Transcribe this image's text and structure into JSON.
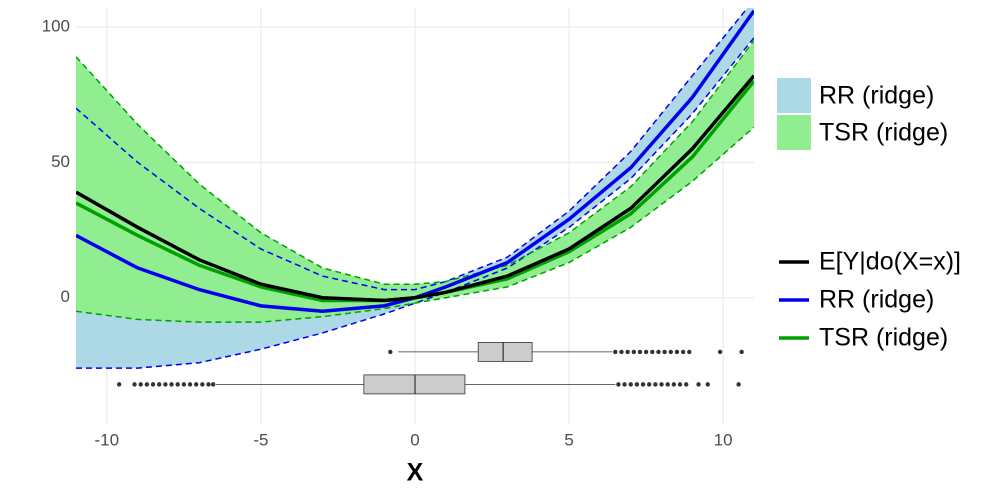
{
  "chart_data": {
    "type": "line",
    "x_label": "X",
    "x": [
      -11,
      -9,
      -7,
      -5,
      -3,
      -1,
      0,
      1,
      3,
      5,
      7,
      9,
      11
    ],
    "series": [
      {
        "name": "E[Y|do(X=x)]",
        "color": "#000000",
        "values": [
          39,
          26,
          14,
          5,
          0,
          -1,
          0,
          2,
          8,
          18,
          33,
          55,
          82
        ]
      },
      {
        "name": "RR (ridge)",
        "color": "#0000ee",
        "values": [
          23,
          11,
          3,
          -3,
          -5,
          -3,
          0,
          4,
          13,
          29,
          48,
          74,
          106
        ]
      },
      {
        "name": "TSR (ridge)",
        "color": "#00a000",
        "values": [
          35,
          23,
          12,
          4,
          -1,
          -1,
          0,
          2,
          7,
          17,
          31,
          52,
          80
        ]
      }
    ],
    "bands": [
      {
        "name": "RR (ridge)",
        "color": "#add8e6",
        "edge_color": "#0000ee",
        "lower": [
          -26,
          -26,
          -24,
          -19,
          -13,
          -6,
          -2,
          2,
          11,
          26,
          44,
          68,
          96
        ],
        "upper": [
          70,
          50,
          33,
          18,
          8,
          3,
          3,
          6,
          15,
          32,
          54,
          82,
          110
        ]
      },
      {
        "name": "TSR (ridge)",
        "color": "#90ee90",
        "edge_color": "#00a000",
        "lower": [
          -5,
          -8,
          -9,
          -9,
          -7,
          -4,
          -2,
          0,
          4,
          13,
          26,
          43,
          63
        ],
        "upper": [
          89,
          64,
          42,
          24,
          11,
          5,
          5,
          6,
          12,
          24,
          41,
          65,
          95
        ]
      }
    ],
    "boxplots": [
      {
        "position": -20,
        "q1": 2.05,
        "median": 2.86,
        "q3": 3.8,
        "whisker_low": -0.55,
        "whisker_high": 6.4,
        "outliers": [
          -0.8,
          6.5,
          6.7,
          6.9,
          7.1,
          7.3,
          7.5,
          7.7,
          7.9,
          8.1,
          8.3,
          8.5,
          8.7,
          8.9,
          9.9,
          10.6
        ]
      },
      {
        "position": -32,
        "q1": -1.66,
        "median": 0,
        "q3": 1.62,
        "whisker_low": -6.46,
        "whisker_high": 6.5,
        "outliers": [
          -9.6,
          -9.1,
          -8.9,
          -8.7,
          -8.5,
          -8.3,
          -8.1,
          -7.9,
          -7.7,
          -7.5,
          -7.3,
          -7.1,
          -6.9,
          -6.7,
          -6.55,
          6.6,
          6.8,
          7.0,
          7.2,
          7.4,
          7.6,
          7.8,
          8.0,
          8.2,
          8.4,
          8.6,
          8.8,
          9.2,
          9.5,
          10.5
        ]
      }
    ],
    "xlim": [
      -11,
      11
    ],
    "ylim": [
      -47,
      107
    ],
    "xticks": [
      -10,
      -5,
      0,
      5,
      10
    ],
    "yticks": [
      0,
      50,
      100
    ],
    "grid": true
  }
}
